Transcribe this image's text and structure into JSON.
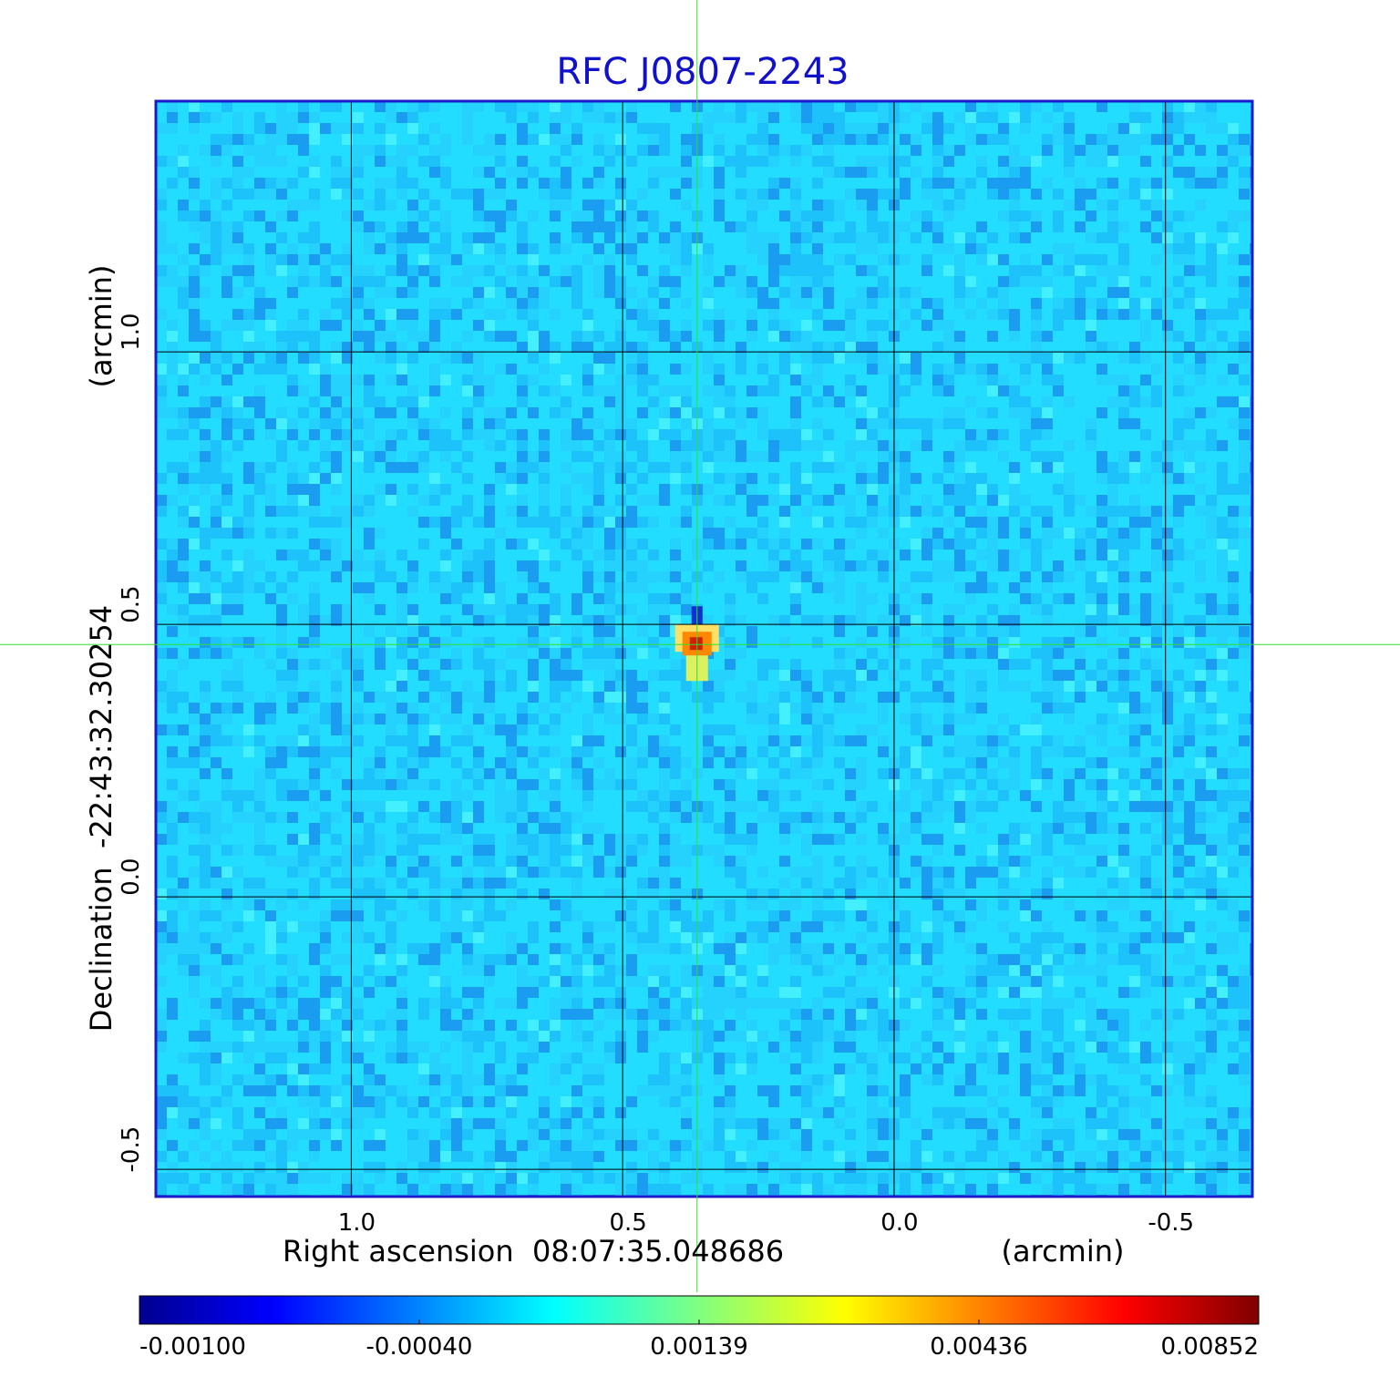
{
  "chart_data": {
    "type": "heatmap",
    "title": "RFC J0807-2243",
    "xlabel": "Right ascension  08:07:35.048686",
    "xunit": "(arcmin)",
    "ylabel": "Declination  -22:43:32.30254",
    "yunit": "(arcmin)",
    "xlim": [
      1.36,
      -0.66
    ],
    "ylim": [
      -0.55,
      1.46
    ],
    "x_ticks": [
      1.0,
      0.5,
      0.0,
      -0.5
    ],
    "x_tick_labels": [
      "1.0",
      "0.5",
      "0.0",
      "-0.5"
    ],
    "y_ticks": [
      -0.5,
      0.0,
      0.5,
      1.0
    ],
    "y_tick_labels": [
      "-0.5",
      "0.0",
      "0.5",
      "1.0"
    ],
    "grid": true,
    "crosshair": {
      "x": 0.363,
      "y": 0.463,
      "color": "#33dd33"
    },
    "source_peak": {
      "x": 0.363,
      "y": 0.463,
      "value": 0.00852
    },
    "colorbar": {
      "orientation": "horizontal",
      "colormap": "jet",
      "tick_labels": [
        "-0.00100",
        "-0.00040",
        "0.00139",
        "0.00436",
        "0.00852"
      ],
      "min": -0.001,
      "max": 0.00852
    },
    "colors": {
      "title": "#1111cc",
      "frame": "#1a1acc",
      "background_level": "#22ddff"
    }
  }
}
